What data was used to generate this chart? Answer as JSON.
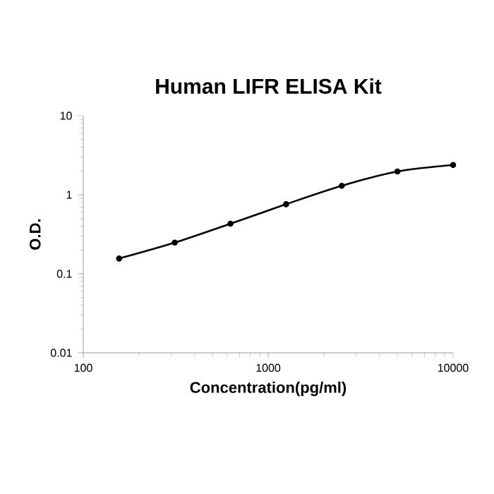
{
  "chart_data": {
    "type": "line",
    "title": "Human LIFR ELISA Kit",
    "xlabel": "Concentration(pg/ml)",
    "ylabel": "O.D.",
    "log": "xy",
    "marker": "circle",
    "line_style": "solid",
    "grid": false,
    "x": [
      156.25,
      312.5,
      625,
      1250,
      2500,
      5000,
      10000
    ],
    "series": [
      {
        "color": "#000000",
        "values": [
          0.156,
          0.248,
          0.43,
          0.76,
          1.3,
          1.97,
          2.38
        ]
      }
    ],
    "xlim": [
      100,
      10000
    ],
    "xticks": [
      100,
      1000,
      10000
    ],
    "ylim": [
      0.01,
      10
    ],
    "yticks": [
      0.01,
      0.1,
      1,
      10
    ]
  }
}
